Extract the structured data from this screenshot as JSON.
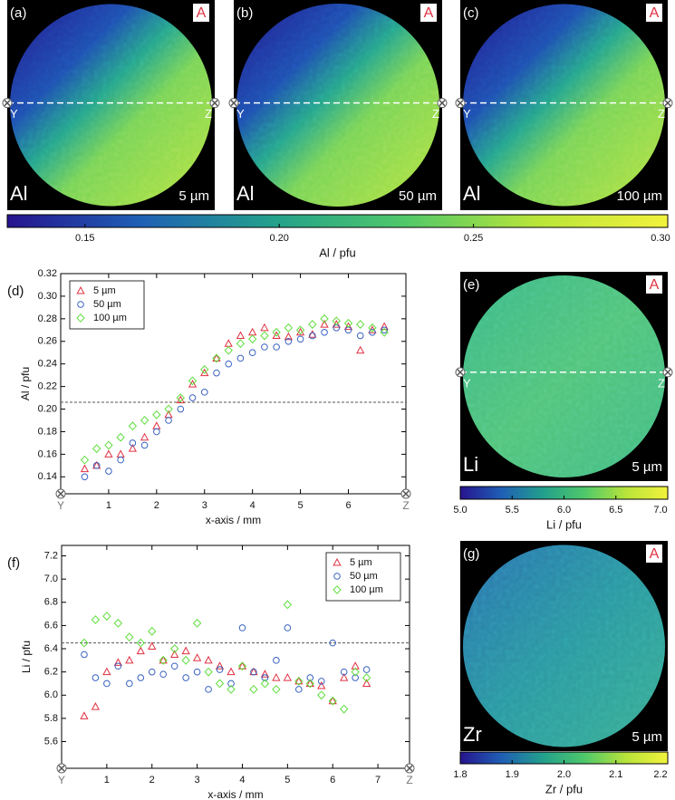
{
  "chart_data": [
    {
      "type": "map",
      "panel": "(a)",
      "sample": "A",
      "element": "Al",
      "scale": "5 µm",
      "endpoints": [
        "Y",
        "Z"
      ]
    },
    {
      "type": "map",
      "panel": "(b)",
      "sample": "A",
      "element": "Al",
      "scale": "50 µm",
      "endpoints": [
        "Y",
        "Z"
      ]
    },
    {
      "type": "map",
      "panel": "(c)",
      "sample": "A",
      "element": "Al",
      "scale": "100 µm",
      "endpoints": [
        "Y",
        "Z"
      ]
    },
    {
      "type": "colorbar",
      "xlabel": "Al / pfu",
      "xlim": [
        0.13,
        0.3
      ],
      "xticks": [
        0.15,
        {
          "value": 0.2,
          "label": "0.20"
        },
        0.25,
        {
          "value": 0.3,
          "label": "0.30"
        }
      ],
      "colors": [
        "#26148e",
        "#1f5fb5",
        "#23a08c",
        "#4fc86a",
        "#b8e43a",
        "#f2f23c"
      ]
    },
    {
      "type": "scatter",
      "panel": "(d)",
      "xlabel": "x-axis / mm",
      "ylabel": "Al / pfu",
      "xlim": [
        0,
        7.2
      ],
      "ylim": [
        0.125,
        0.32
      ],
      "xticks": [
        1,
        2,
        3,
        4,
        5,
        6
      ],
      "yticks": [
        0.14,
        0.16,
        0.18,
        {
          "value": 0.2,
          "label": "0.20"
        },
        0.22,
        0.24,
        0.26,
        0.28,
        {
          "value": 0.3,
          "label": "0.30"
        },
        0.32
      ],
      "hline": 0.206,
      "endpoints": [
        "Y",
        "Z"
      ],
      "legend": "upper left",
      "x": [
        0.5,
        0.75,
        1.0,
        1.25,
        1.5,
        1.75,
        2.0,
        2.25,
        2.5,
        2.75,
        3.0,
        3.25,
        3.5,
        3.75,
        4.0,
        4.25,
        4.5,
        4.75,
        5.0,
        5.25,
        5.5,
        5.75,
        6.0,
        6.25,
        6.5,
        6.75
      ],
      "series": [
        {
          "name": "5 µm",
          "color": "#e03040",
          "marker": "triangle",
          "values": [
            0.147,
            0.15,
            0.16,
            0.16,
            0.165,
            0.175,
            0.185,
            0.195,
            0.208,
            0.222,
            0.232,
            0.245,
            0.258,
            0.265,
            0.268,
            0.272,
            0.265,
            0.264,
            0.268,
            0.266,
            0.275,
            0.275,
            0.273,
            0.252,
            0.27,
            0.273
          ]
        },
        {
          "name": "50 µm",
          "color": "#3a62c0",
          "marker": "circle",
          "values": [
            0.14,
            0.15,
            0.145,
            0.155,
            0.17,
            0.168,
            0.18,
            0.19,
            0.2,
            0.21,
            0.215,
            0.232,
            0.24,
            0.245,
            0.25,
            0.255,
            0.255,
            0.26,
            0.262,
            0.265,
            0.268,
            0.272,
            0.27,
            0.265,
            0.268,
            0.27
          ]
        },
        {
          "name": "100 µm",
          "color": "#5ede3a",
          "marker": "diamond",
          "values": [
            0.155,
            0.165,
            0.168,
            0.175,
            0.185,
            0.19,
            0.195,
            0.2,
            0.21,
            0.225,
            0.235,
            0.245,
            0.252,
            0.258,
            0.262,
            0.265,
            0.268,
            0.272,
            0.27,
            0.275,
            0.28,
            0.278,
            0.276,
            0.275,
            0.272,
            0.268
          ]
        }
      ]
    },
    {
      "type": "map",
      "panel": "(e)",
      "sample": "A",
      "element": "Li",
      "scale": "5 µm",
      "endpoints": [
        "Y",
        "Z"
      ]
    },
    {
      "type": "colorbar",
      "xlabel": "Li / pfu",
      "xlim": [
        5,
        7
      ],
      "xticks": [
        {
          "value": 5,
          "label": "5.0"
        },
        5.5,
        {
          "value": 6,
          "label": "6.0"
        },
        6.5,
        {
          "value": 7,
          "label": "7.0"
        }
      ],
      "colors": [
        "#26148e",
        "#1f5fb5",
        "#23a08c",
        "#4fc86a",
        "#b8e43a",
        "#f2f23c"
      ]
    },
    {
      "type": "scatter",
      "panel": "(f)",
      "xlabel": "x-axis / mm",
      "ylabel": "Li / pfu",
      "xlim": [
        0,
        7.7
      ],
      "ylim": [
        5.37,
        7.29
      ],
      "xticks": [
        1,
        2,
        3,
        4,
        5,
        6,
        7
      ],
      "yticks": [
        5.6,
        5.8,
        {
          "value": 6,
          "label": "6.0"
        },
        6.2,
        6.4,
        6.6,
        6.8,
        {
          "value": 7,
          "label": "7.0"
        },
        7.2
      ],
      "hline": 6.45,
      "endpoints": [
        "Y",
        "Z"
      ],
      "legend": "upper right",
      "x": [
        0.5,
        0.75,
        1.0,
        1.25,
        1.5,
        1.75,
        2.0,
        2.25,
        2.5,
        2.75,
        3.0,
        3.25,
        3.5,
        3.75,
        4.0,
        4.25,
        4.5,
        4.75,
        5.0,
        5.25,
        5.5,
        5.75,
        6.0,
        6.25,
        6.5,
        6.75
      ],
      "series": [
        {
          "name": "5 µm",
          "color": "#e03040",
          "marker": "triangle",
          "values": [
            5.82,
            5.9,
            6.2,
            6.28,
            6.3,
            6.38,
            6.42,
            6.3,
            6.35,
            6.38,
            6.32,
            6.3,
            6.25,
            6.2,
            6.25,
            6.2,
            6.18,
            6.15,
            6.15,
            6.12,
            6.1,
            6.08,
            5.95,
            6.15,
            6.25,
            6.1
          ]
        },
        {
          "name": "50 µm",
          "color": "#3a62c0",
          "marker": "circle",
          "values": [
            6.35,
            6.15,
            6.1,
            6.25,
            6.1,
            6.15,
            6.2,
            6.18,
            6.25,
            6.15,
            6.2,
            6.05,
            6.22,
            6.1,
            6.58,
            6.2,
            6.15,
            6.3,
            6.58,
            6.05,
            6.15,
            6.12,
            6.45,
            6.2,
            6.15,
            6.22
          ]
        },
        {
          "name": "100 µm",
          "color": "#5ede3a",
          "marker": "diamond",
          "values": [
            6.45,
            6.65,
            6.68,
            6.62,
            6.5,
            6.45,
            6.55,
            6.3,
            6.4,
            6.3,
            6.62,
            6.2,
            6.1,
            6.05,
            6.25,
            6.05,
            6.1,
            6.05,
            6.78,
            6.12,
            6.1,
            6.0,
            5.95,
            5.88,
            6.2,
            6.15
          ]
        }
      ]
    },
    {
      "type": "map",
      "panel": "(g)",
      "sample": "A",
      "element": "Zr",
      "scale": "5 µm"
    },
    {
      "type": "colorbar",
      "xlabel": "Zr / pfu",
      "xlim": [
        1.8,
        2.2
      ],
      "xticks": [
        1.8,
        1.9,
        {
          "value": 2,
          "label": "2.0"
        },
        2.1,
        2.2
      ],
      "colors": [
        "#26148e",
        "#1f5fb5",
        "#23a08c",
        "#4fc86a",
        "#b8e43a",
        "#f2f23c"
      ]
    }
  ]
}
